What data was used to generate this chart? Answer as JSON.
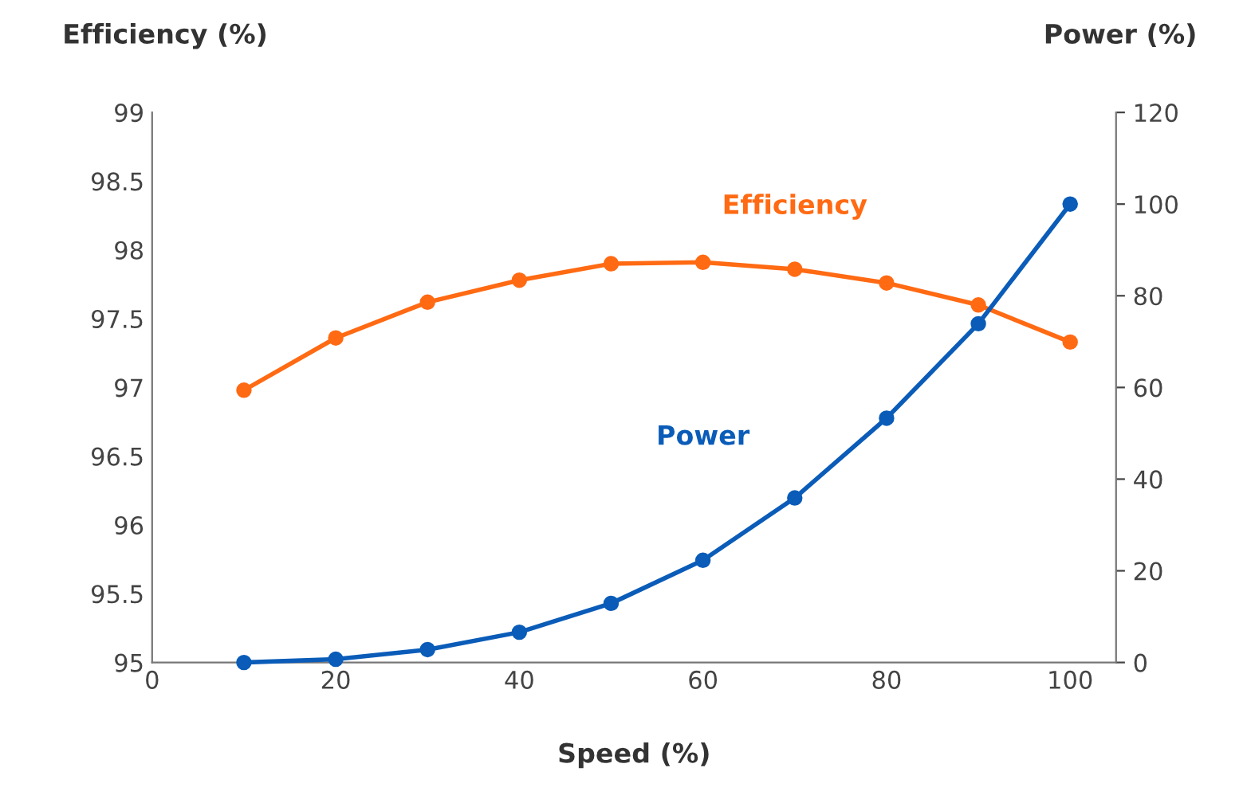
{
  "chart_data": {
    "type": "line",
    "xlabel": "Speed (%)",
    "ylabel": "Efficiency (%)",
    "y2label": "Power (%)",
    "x": [
      10,
      20,
      30,
      40,
      50,
      60,
      70,
      80,
      90,
      100
    ],
    "series": [
      {
        "name": "Efficiency",
        "color": "#ff6a13",
        "values": [
          96.98,
          97.36,
          97.62,
          97.78,
          97.9,
          97.91,
          97.86,
          97.76,
          97.6,
          97.33
        ]
      },
      {
        "name": "Power",
        "color": "#0a5cb8",
        "axis": "y2",
        "values": [
          0,
          0.7,
          2.8,
          6.6,
          12.9,
          22.3,
          35.9,
          53.3,
          73.9,
          100
        ]
      }
    ],
    "xlim": [
      0,
      105
    ],
    "xticks": [
      0,
      20,
      40,
      60,
      80,
      100
    ],
    "ylim": [
      95,
      99
    ],
    "yticks": [
      95,
      95.5,
      96,
      96.5,
      97,
      97.5,
      98,
      98.5,
      99
    ],
    "y2lim": [
      0,
      120
    ],
    "y2ticks": [
      0,
      20,
      40,
      60,
      80,
      100,
      120
    ],
    "marker": "circle",
    "line_style": "solid",
    "grid": false,
    "legend": false
  }
}
